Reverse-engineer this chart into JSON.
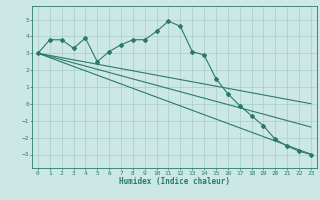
{
  "xlabel": "Humidex (Indice chaleur)",
  "background_color": "#cce8e4",
  "grid_color": "#aaccca",
  "line_color": "#2a7a6a",
  "xlim": [
    -0.5,
    23.5
  ],
  "ylim": [
    -3.8,
    5.8
  ],
  "yticks": [
    -3,
    -2,
    -1,
    0,
    1,
    2,
    3,
    4,
    5
  ],
  "xticks": [
    0,
    1,
    2,
    3,
    4,
    5,
    6,
    7,
    8,
    9,
    10,
    11,
    12,
    13,
    14,
    15,
    16,
    17,
    18,
    19,
    20,
    21,
    22,
    23
  ],
  "series1_x": [
    0,
    1,
    2,
    3,
    4,
    5,
    6,
    7,
    8,
    9,
    10,
    11,
    12,
    13,
    14,
    15,
    16,
    17,
    18,
    19,
    20,
    21,
    22,
    23
  ],
  "series1_y": [
    3.0,
    3.8,
    3.8,
    3.3,
    3.9,
    2.5,
    3.1,
    3.5,
    3.8,
    3.8,
    4.3,
    4.9,
    4.6,
    3.1,
    2.9,
    1.5,
    0.6,
    -0.1,
    -0.7,
    -1.3,
    -2.1,
    -2.5,
    -2.8,
    -3.0
  ],
  "series2_x": [
    0,
    1,
    2,
    3,
    4,
    5,
    6,
    7,
    8,
    9,
    10,
    11,
    12,
    13,
    14,
    15,
    16,
    17,
    18,
    19,
    20,
    21,
    22,
    23
  ],
  "series2_y": [
    3.0,
    2.87,
    2.74,
    2.61,
    2.48,
    2.35,
    2.22,
    2.09,
    1.96,
    1.83,
    1.7,
    1.57,
    1.44,
    1.31,
    1.18,
    1.05,
    0.92,
    0.79,
    0.66,
    0.53,
    0.4,
    0.27,
    0.14,
    0.01
  ],
  "series3_x": [
    0,
    1,
    2,
    3,
    4,
    5,
    6,
    7,
    8,
    9,
    10,
    11,
    12,
    13,
    14,
    15,
    16,
    17,
    18,
    19,
    20,
    21,
    22,
    23
  ],
  "series3_y": [
    3.0,
    2.74,
    2.48,
    2.22,
    1.96,
    1.7,
    1.44,
    1.18,
    0.92,
    0.66,
    0.4,
    0.14,
    -0.12,
    -0.38,
    -0.64,
    -0.9,
    -1.16,
    -1.42,
    -1.68,
    -1.94,
    -2.2,
    -2.46,
    -2.72,
    -2.98
  ],
  "series4_x": [
    0,
    1,
    2,
    3,
    4,
    5,
    6,
    7,
    8,
    9,
    10,
    11,
    12,
    13,
    14,
    15,
    16,
    17,
    18,
    19,
    20,
    21,
    22,
    23
  ],
  "series4_y": [
    3.0,
    2.81,
    2.62,
    2.43,
    2.24,
    2.05,
    1.86,
    1.67,
    1.48,
    1.29,
    1.1,
    0.91,
    0.72,
    0.53,
    0.34,
    0.15,
    -0.04,
    -0.23,
    -0.42,
    -0.61,
    -0.8,
    -0.99,
    -1.18,
    -1.37
  ]
}
